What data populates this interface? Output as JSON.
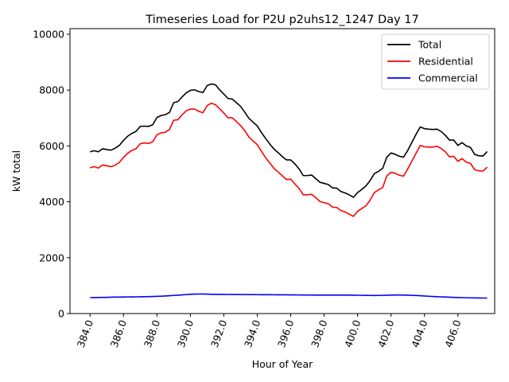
{
  "chart_data": {
    "type": "line",
    "title": "Timeseries Load for P2U p2uhs12_1247  Day 17",
    "xlabel": "Hour of Year",
    "ylabel": "kW total",
    "xlim": [
      382.8,
      408.2
    ],
    "ylim": [
      0,
      10200
    ],
    "xticks": [
      384,
      386,
      388,
      390,
      392,
      394,
      396,
      398,
      400,
      402,
      404,
      406
    ],
    "xtick_labels": [
      "384.0",
      "386.0",
      "388.0",
      "390.0",
      "392.0",
      "394.0",
      "396.0",
      "398.0",
      "400.0",
      "402.0",
      "404.0",
      "406.0"
    ],
    "yticks": [
      0,
      2000,
      4000,
      6000,
      8000,
      10000
    ],
    "ytick_labels": [
      "0",
      "2000",
      "4000",
      "6000",
      "8000",
      "10000"
    ],
    "legend_position": "top-right",
    "x": [
      384.0,
      384.25,
      384.5,
      384.75,
      385.0,
      385.25,
      385.5,
      385.75,
      386.0,
      386.25,
      386.5,
      386.75,
      387.0,
      387.25,
      387.5,
      387.75,
      388.0,
      388.25,
      388.5,
      388.75,
      389.0,
      389.25,
      389.5,
      389.75,
      390.0,
      390.25,
      390.5,
      390.75,
      391.0,
      391.25,
      391.5,
      391.75,
      392.0,
      392.25,
      392.5,
      392.75,
      393.0,
      393.25,
      393.5,
      393.75,
      394.0,
      394.25,
      394.5,
      394.75,
      395.0,
      395.25,
      395.5,
      395.75,
      396.0,
      396.25,
      396.5,
      396.75,
      397.0,
      397.25,
      397.5,
      397.75,
      398.0,
      398.25,
      398.5,
      398.75,
      399.0,
      399.25,
      399.5,
      399.75,
      400.0,
      400.25,
      400.5,
      400.75,
      401.0,
      401.25,
      401.5,
      401.75,
      402.0,
      402.25,
      402.5,
      402.75,
      403.0,
      403.25,
      403.5,
      403.75,
      404.0,
      404.25,
      404.5,
      404.75,
      405.0,
      405.25,
      405.5,
      405.75,
      406.0,
      406.25,
      406.5,
      406.75,
      407.0,
      407.25,
      407.5,
      407.75
    ],
    "series": [
      {
        "name": "Total",
        "color": "#000000",
        "values": [
          5790,
          5830,
          5790,
          5900,
          5870,
          5850,
          5920,
          6020,
          6200,
          6350,
          6450,
          6520,
          6700,
          6710,
          6700,
          6760,
          7020,
          7090,
          7120,
          7200,
          7550,
          7590,
          7750,
          7900,
          7990,
          8010,
          7950,
          7910,
          8160,
          8220,
          8190,
          8010,
          7860,
          7700,
          7680,
          7550,
          7420,
          7210,
          6990,
          6850,
          6720,
          6480,
          6270,
          6070,
          5890,
          5760,
          5620,
          5500,
          5500,
          5360,
          5180,
          4940,
          4940,
          4960,
          4830,
          4700,
          4660,
          4620,
          4500,
          4490,
          4370,
          4320,
          4250,
          4160,
          4330,
          4440,
          4570,
          4760,
          5010,
          5090,
          5200,
          5600,
          5750,
          5700,
          5630,
          5600,
          5840,
          6130,
          6420,
          6680,
          6620,
          6600,
          6590,
          6600,
          6520,
          6380,
          6210,
          6210,
          6020,
          6120,
          6000,
          5950,
          5700,
          5650,
          5640,
          5800
        ]
      },
      {
        "name": "Residential",
        "color": "#ff0000",
        "values": [
          5220,
          5260,
          5210,
          5320,
          5290,
          5260,
          5310,
          5410,
          5590,
          5740,
          5840,
          5900,
          6080,
          6110,
          6090,
          6150,
          6400,
          6470,
          6490,
          6590,
          6920,
          6940,
          7110,
          7260,
          7320,
          7320,
          7240,
          7190,
          7440,
          7530,
          7480,
          7330,
          7180,
          7010,
          7010,
          6880,
          6730,
          6550,
          6320,
          6180,
          6050,
          5810,
          5580,
          5390,
          5200,
          5070,
          4930,
          4800,
          4810,
          4640,
          4480,
          4250,
          4250,
          4270,
          4150,
          4010,
          3970,
          3930,
          3810,
          3800,
          3690,
          3640,
          3560,
          3480,
          3660,
          3760,
          3860,
          4060,
          4330,
          4430,
          4510,
          4930,
          5060,
          5020,
          4950,
          4920,
          5180,
          5460,
          5740,
          6020,
          5970,
          5960,
          5960,
          5990,
          5910,
          5790,
          5610,
          5630,
          5450,
          5550,
          5420,
          5380,
          5150,
          5110,
          5100,
          5240
        ]
      },
      {
        "name": "Commercial",
        "color": "#0000ff",
        "values": [
          570,
          572,
          575,
          578,
          580,
          585,
          588,
          590,
          592,
          595,
          597,
          598,
          600,
          605,
          608,
          612,
          618,
          622,
          630,
          640,
          648,
          658,
          668,
          680,
          690,
          695,
          698,
          700,
          695,
          690,
          688,
          686,
          685,
          684,
          683,
          682,
          681,
          680,
          679,
          678,
          677,
          676,
          675,
          674,
          673,
          672,
          671,
          670,
          668,
          667,
          666,
          665,
          664,
          663,
          662,
          661,
          660,
          660,
          660,
          660,
          660,
          660,
          660,
          658,
          655,
          652,
          650,
          648,
          645,
          648,
          652,
          658,
          662,
          665,
          665,
          662,
          658,
          652,
          645,
          638,
          630,
          620,
          612,
          605,
          598,
          592,
          585,
          580,
          575,
          570,
          566,
          563,
          560,
          558,
          556,
          555
        ]
      }
    ]
  }
}
